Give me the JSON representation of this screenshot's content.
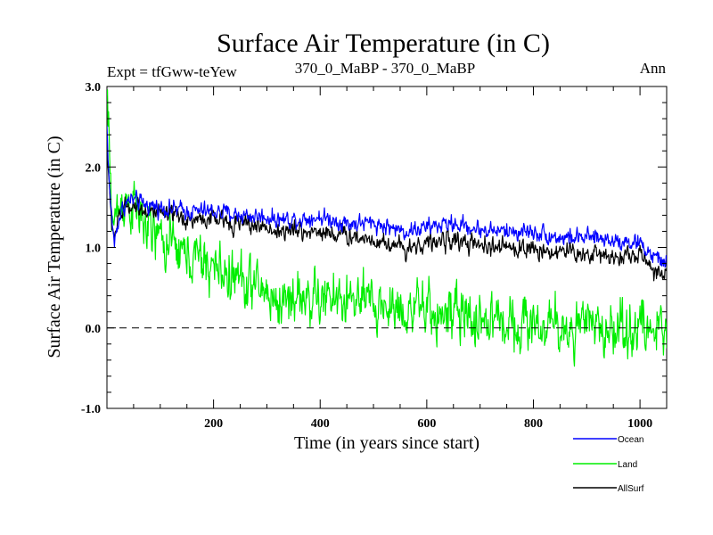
{
  "chart_data": {
    "type": "line",
    "title": "Surface Air Temperature (in C)",
    "subtitle_left": "Expt = tfGww-teYew",
    "subtitle_center": "370_0_MaBP - 370_0_MaBP",
    "subtitle_right": "Ann",
    "xlabel": "Time (in years since start)",
    "ylabel": "Surface Air Temperature (in C)",
    "xlim": [
      0,
      1050
    ],
    "ylim": [
      -1.0,
      3.0
    ],
    "x_ticks": [
      200,
      400,
      600,
      800,
      1000
    ],
    "x_tick_labels": [
      "200",
      "400",
      "600",
      "800",
      "1000"
    ],
    "y_ticks": [
      -1.0,
      0.0,
      1.0,
      2.0,
      3.0
    ],
    "y_tick_labels": [
      "-1.0",
      "0.0",
      "1.0",
      "2.0",
      "3.0"
    ],
    "reference_line": 0.0,
    "legend_position": "bottom-right",
    "series": [
      {
        "name": "Ocean",
        "color": "#0000ff",
        "noise": 0.055,
        "anchors": [
          [
            0,
            2.5
          ],
          [
            3,
            2.0
          ],
          [
            6,
            1.6
          ],
          [
            10,
            1.3
          ],
          [
            14,
            1.05
          ],
          [
            20,
            1.3
          ],
          [
            30,
            1.5
          ],
          [
            45,
            1.6
          ],
          [
            60,
            1.55
          ],
          [
            100,
            1.5
          ],
          [
            150,
            1.45
          ],
          [
            200,
            1.45
          ],
          [
            250,
            1.4
          ],
          [
            300,
            1.38
          ],
          [
            320,
            1.35
          ],
          [
            350,
            1.35
          ],
          [
            400,
            1.38
          ],
          [
            450,
            1.3
          ],
          [
            500,
            1.3
          ],
          [
            560,
            1.2
          ],
          [
            600,
            1.25
          ],
          [
            650,
            1.3
          ],
          [
            700,
            1.22
          ],
          [
            750,
            1.2
          ],
          [
            800,
            1.2
          ],
          [
            850,
            1.12
          ],
          [
            900,
            1.12
          ],
          [
            950,
            1.1
          ],
          [
            1000,
            1.05
          ],
          [
            1030,
            0.85
          ],
          [
            1050,
            0.82
          ]
        ]
      },
      {
        "name": "Land",
        "color": "#00ee00",
        "noise": 0.17,
        "anchors": [
          [
            0,
            2.85
          ],
          [
            4,
            2.3
          ],
          [
            8,
            1.6
          ],
          [
            12,
            1.3
          ],
          [
            20,
            1.45
          ],
          [
            30,
            1.6
          ],
          [
            50,
            1.5
          ],
          [
            80,
            1.2
          ],
          [
            100,
            1.1
          ],
          [
            150,
            0.9
          ],
          [
            200,
            0.75
          ],
          [
            250,
            0.6
          ],
          [
            300,
            0.45
          ],
          [
            320,
            0.3
          ],
          [
            350,
            0.4
          ],
          [
            400,
            0.35
          ],
          [
            450,
            0.35
          ],
          [
            500,
            0.28
          ],
          [
            550,
            0.25
          ],
          [
            600,
            0.2
          ],
          [
            650,
            0.15
          ],
          [
            700,
            0.1
          ],
          [
            750,
            0.1
          ],
          [
            800,
            0.05
          ],
          [
            850,
            0.0
          ],
          [
            900,
            0.0
          ],
          [
            950,
            0.0
          ],
          [
            1000,
            0.0
          ],
          [
            1050,
            -0.05
          ]
        ]
      },
      {
        "name": "AllSurf",
        "color": "#000000",
        "noise": 0.06,
        "anchors": [
          [
            0,
            2.4
          ],
          [
            3,
            1.9
          ],
          [
            6,
            1.5
          ],
          [
            10,
            1.25
          ],
          [
            14,
            1.15
          ],
          [
            20,
            1.3
          ],
          [
            30,
            1.45
          ],
          [
            45,
            1.55
          ],
          [
            60,
            1.5
          ],
          [
            100,
            1.4
          ],
          [
            150,
            1.35
          ],
          [
            200,
            1.35
          ],
          [
            250,
            1.3
          ],
          [
            300,
            1.25
          ],
          [
            320,
            1.2
          ],
          [
            350,
            1.2
          ],
          [
            400,
            1.2
          ],
          [
            450,
            1.15
          ],
          [
            500,
            1.1
          ],
          [
            560,
            1.0
          ],
          [
            600,
            1.05
          ],
          [
            650,
            1.1
          ],
          [
            700,
            1.0
          ],
          [
            750,
            1.0
          ],
          [
            800,
            0.98
          ],
          [
            850,
            0.95
          ],
          [
            900,
            0.92
          ],
          [
            950,
            0.9
          ],
          [
            1000,
            0.9
          ],
          [
            1030,
            0.7
          ],
          [
            1050,
            0.68
          ]
        ]
      }
    ]
  }
}
